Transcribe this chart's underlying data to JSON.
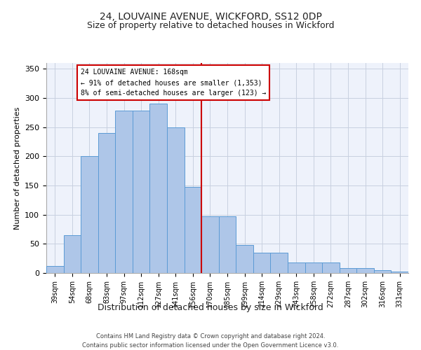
{
  "title1": "24, LOUVAINE AVENUE, WICKFORD, SS12 0DP",
  "title2": "Size of property relative to detached houses in Wickford",
  "xlabel": "Distribution of detached houses by size in Wickford",
  "ylabel": "Number of detached properties",
  "categories": [
    "39sqm",
    "54sqm",
    "68sqm",
    "83sqm",
    "97sqm",
    "112sqm",
    "127sqm",
    "141sqm",
    "156sqm",
    "170sqm",
    "185sqm",
    "199sqm",
    "214sqm",
    "229sqm",
    "243sqm",
    "258sqm",
    "272sqm",
    "287sqm",
    "302sqm",
    "316sqm",
    "331sqm"
  ],
  "values": [
    12,
    65,
    200,
    240,
    278,
    278,
    290,
    250,
    148,
    97,
    97,
    48,
    35,
    35,
    18,
    18,
    18,
    8,
    8,
    5,
    3
  ],
  "bar_color": "#aec6e8",
  "bar_edge_color": "#5b9bd5",
  "vline_color": "#cc0000",
  "annotation_text": "24 LOUVAINE AVENUE: 168sqm\n← 91% of detached houses are smaller (1,353)\n8% of semi-detached houses are larger (123) →",
  "annotation_box_color": "#cc0000",
  "ylim": [
    0,
    360
  ],
  "yticks": [
    0,
    50,
    100,
    150,
    200,
    250,
    300,
    350
  ],
  "footer1": "Contains HM Land Registry data © Crown copyright and database right 2024.",
  "footer2": "Contains public sector information licensed under the Open Government Licence v3.0.",
  "bg_color": "#eef2fb",
  "grid_color": "#c8d0e0",
  "title1_fontsize": 10,
  "title2_fontsize": 9,
  "ylabel_fontsize": 8,
  "xlabel_fontsize": 9,
  "tick_fontsize": 7,
  "annot_fontsize": 7,
  "footer_fontsize": 6
}
